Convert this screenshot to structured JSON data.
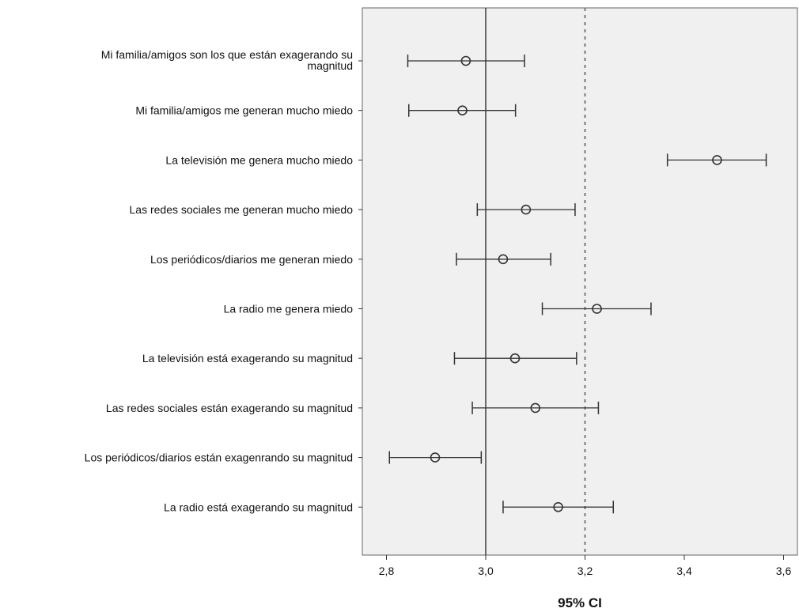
{
  "chart_data": {
    "type": "errorbar",
    "xlabel": "95% CI",
    "xlim": [
      2.75,
      3.62
    ],
    "xticks": [
      2.8,
      3.0,
      3.2,
      3.4,
      3.6
    ],
    "xtick_labels": [
      "2,8",
      "3,0",
      "3,2",
      "3,4",
      "3,6"
    ],
    "reference_lines": [
      {
        "x": 3.0,
        "style": "solid"
      },
      {
        "x": 3.2,
        "style": "dotted"
      }
    ],
    "categories": [
      {
        "label": [
          "Mi familia/amigos son los que están exagerando su",
          "magnitud"
        ],
        "lower": 2.843,
        "mean": 2.96,
        "upper": 3.078
      },
      {
        "label": [
          "Mi familia/amigos me generan mucho miedo"
        ],
        "lower": 2.845,
        "mean": 2.953,
        "upper": 3.06
      },
      {
        "label": [
          "La televisión me genera mucho miedo"
        ],
        "lower": 3.366,
        "mean": 3.466,
        "upper": 3.565
      },
      {
        "label": [
          "Las redes sociales me generan mucho miedo"
        ],
        "lower": 2.983,
        "mean": 3.081,
        "upper": 3.18
      },
      {
        "label": [
          "Los periódicos/diarios me generan miedo"
        ],
        "lower": 2.941,
        "mean": 3.035,
        "upper": 3.131
      },
      {
        "label": [
          "La radio me genera miedo"
        ],
        "lower": 3.114,
        "mean": 3.224,
        "upper": 3.333
      },
      {
        "label": [
          "La televisión está exagerando su magnitud"
        ],
        "lower": 2.937,
        "mean": 3.059,
        "upper": 3.183
      },
      {
        "label": [
          "Las redes sociales están exagerando su magnitud"
        ],
        "lower": 2.973,
        "mean": 3.1,
        "upper": 3.227
      },
      {
        "label": [
          "Los periódicos/diarios están exagenrando su magnitud"
        ],
        "lower": 2.806,
        "mean": 2.898,
        "upper": 2.991
      },
      {
        "label": [
          "La radio está exagerando su magnitud"
        ],
        "lower": 3.035,
        "mean": 3.146,
        "upper": 3.257
      }
    ],
    "colors": {
      "plot_background": "#f0f0f0",
      "frame": "#666666",
      "marks": "#333333"
    },
    "grid": false
  }
}
